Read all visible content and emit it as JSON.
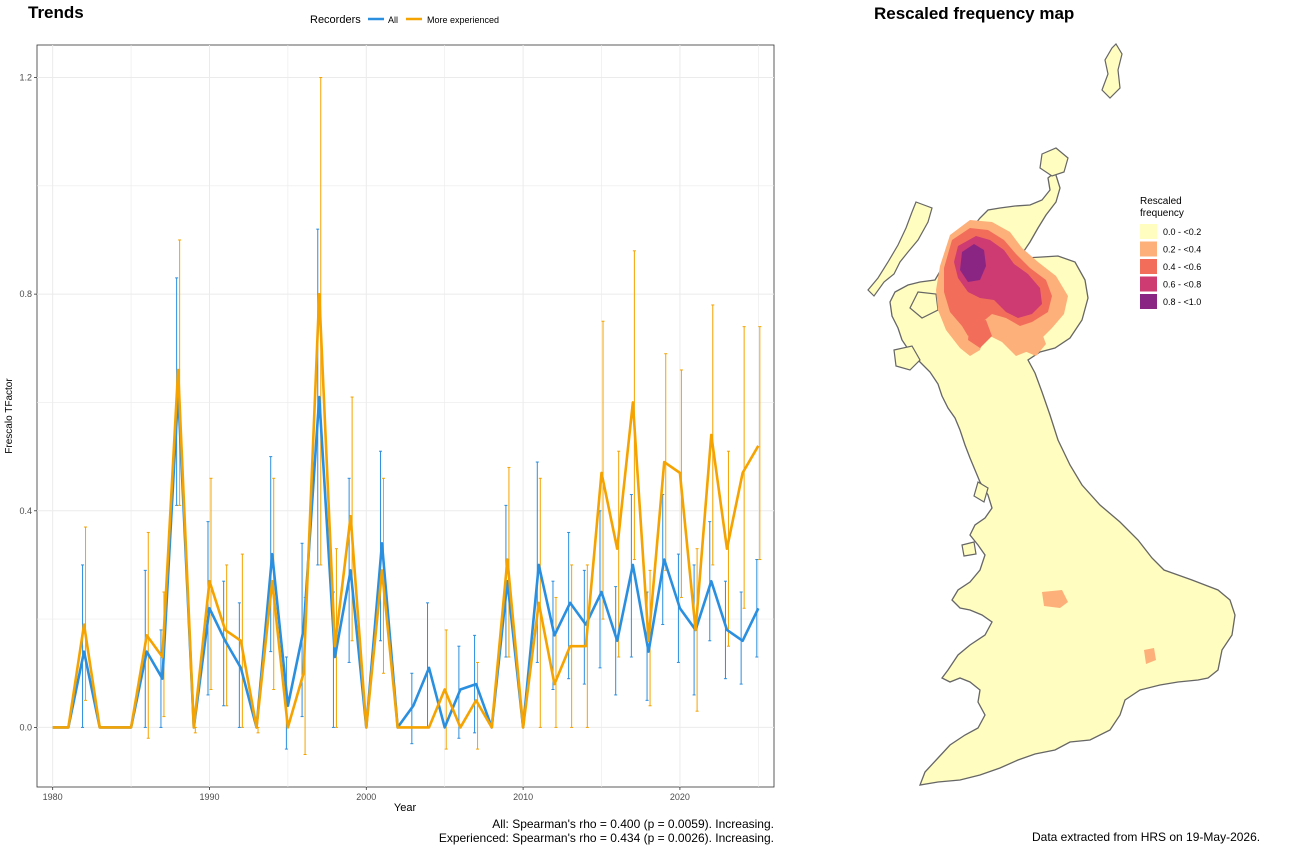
{
  "trends": {
    "title": "Trends",
    "legend_title": "Recorders",
    "stats": {
      "all": "All: Spearman's rho = 0.400 (p = 0.0059). Increasing.",
      "experienced": "Experienced: Spearman's rho = 0.434 (p = 0.0026). Increasing."
    }
  },
  "map": {
    "title": "Rescaled frequency map",
    "legend_title_1": "Rescaled",
    "legend_title_2": "frequency",
    "legend": [
      {
        "label": "0.0 - <0.2",
        "color": "#fffdbf"
      },
      {
        "label": "0.2 - <0.4",
        "color": "#fdb07a"
      },
      {
        "label": "0.4 - <0.6",
        "color": "#f26e5a"
      },
      {
        "label": "0.6 - <0.8",
        "color": "#cd3b72"
      },
      {
        "label": "0.8 - <1.0",
        "color": "#8b2584"
      }
    ],
    "credit": "Data extracted from HRS on 19-May-2026."
  },
  "chart_data": {
    "type": "line",
    "title": "Trends",
    "xlabel": "Year",
    "ylabel": "Frescalo TFactor",
    "xlim": [
      1979,
      2026
    ],
    "ylim": [
      -0.11,
      1.26
    ],
    "xticks": [
      1980,
      1990,
      2000,
      2010,
      2020
    ],
    "yticks": [
      0.0,
      0.4,
      0.8,
      1.2
    ],
    "ytick_labels": [
      "0.0",
      "0.4",
      "0.8",
      "1.2"
    ],
    "grid": true,
    "legend_position": "top",
    "x": [
      1980,
      1981,
      1982,
      1983,
      1984,
      1985,
      1986,
      1987,
      1988,
      1989,
      1990,
      1991,
      1992,
      1993,
      1994,
      1995,
      1996,
      1997,
      1998,
      1999,
      2000,
      2001,
      2002,
      2003,
      2004,
      2005,
      2006,
      2007,
      2008,
      2009,
      2010,
      2011,
      2012,
      2013,
      2014,
      2015,
      2016,
      2017,
      2018,
      2019,
      2020,
      2021,
      2022,
      2023,
      2024,
      2025
    ],
    "series": [
      {
        "name": "All",
        "color": "#2b8fe0",
        "values": [
          0,
          0,
          0.14,
          0,
          0,
          0,
          0.14,
          0.09,
          0.62,
          0,
          0.22,
          0.16,
          0.11,
          0,
          0.32,
          0.04,
          0.18,
          0.61,
          0.13,
          0.29,
          0,
          0.34,
          0,
          0.04,
          0.11,
          0,
          0.07,
          0.08,
          0,
          0.27,
          0,
          0.3,
          0.17,
          0.23,
          0.19,
          0.25,
          0.16,
          0.3,
          0.14,
          0.31,
          0.22,
          0.18,
          0.27,
          0.18,
          0.16,
          0.22
        ],
        "lower": [
          null,
          null,
          0,
          null,
          null,
          null,
          0,
          0,
          0.41,
          0,
          0.06,
          0.04,
          0,
          0,
          0.14,
          -0.04,
          0.02,
          0.3,
          0,
          0.12,
          0,
          0.16,
          null,
          -0.03,
          0,
          null,
          -0.02,
          -0.01,
          null,
          0.13,
          0,
          0.12,
          0.07,
          0.09,
          0.08,
          0.11,
          0.06,
          0.13,
          0.05,
          0.19,
          0.12,
          0.06,
          0.16,
          0.09,
          0.08,
          0.13
        ],
        "upper": [
          null,
          null,
          0.3,
          null,
          null,
          null,
          0.29,
          0.18,
          0.83,
          0,
          0.38,
          0.27,
          0.23,
          0,
          0.5,
          0.13,
          0.34,
          0.92,
          0.25,
          0.46,
          0,
          0.51,
          null,
          0.1,
          0.23,
          null,
          0.15,
          0.17,
          null,
          0.41,
          0,
          0.49,
          0.27,
          0.36,
          0.29,
          0.4,
          0.26,
          0.43,
          0.25,
          0.43,
          0.32,
          0.3,
          0.38,
          0.27,
          0.25,
          0.31
        ]
      },
      {
        "name": "More experienced",
        "color": "#f5a300",
        "values": [
          0,
          0,
          0.19,
          0,
          0,
          0,
          0.17,
          0.13,
          0.66,
          0,
          0.27,
          0.18,
          0.16,
          0,
          0.27,
          0,
          0.1,
          0.8,
          0.15,
          0.39,
          0,
          0.29,
          0,
          0,
          0,
          0.07,
          0,
          0.05,
          0,
          0.31,
          0,
          0.23,
          0.08,
          0.15,
          0.15,
          0.47,
          0.33,
          0.6,
          0.16,
          0.49,
          0.47,
          0.18,
          0.54,
          0.33,
          0.47,
          0.52
        ],
        "lower": [
          null,
          null,
          0.05,
          null,
          null,
          null,
          -0.02,
          0.02,
          0.41,
          -0.01,
          0.07,
          0.04,
          0,
          -0.01,
          0.07,
          null,
          -0.05,
          0.3,
          0,
          0.16,
          null,
          0.1,
          null,
          null,
          null,
          -0.04,
          null,
          -0.04,
          null,
          0.13,
          null,
          0,
          0,
          0,
          0,
          0.2,
          0.13,
          0.31,
          0.04,
          0.29,
          0.24,
          0.03,
          0.3,
          0.15,
          0.22,
          0.31
        ],
        "upper": [
          null,
          null,
          0.37,
          null,
          null,
          null,
          0.36,
          0.25,
          0.9,
          0,
          0.46,
          0.3,
          0.32,
          0,
          0.46,
          null,
          0.24,
          1.2,
          0.33,
          0.61,
          null,
          0.46,
          null,
          null,
          null,
          0.18,
          null,
          0.12,
          null,
          0.48,
          null,
          0.46,
          0.24,
          0.3,
          0.3,
          0.75,
          0.51,
          0.88,
          0.29,
          0.69,
          0.66,
          0.33,
          0.78,
          0.51,
          0.74,
          0.74
        ]
      }
    ]
  }
}
